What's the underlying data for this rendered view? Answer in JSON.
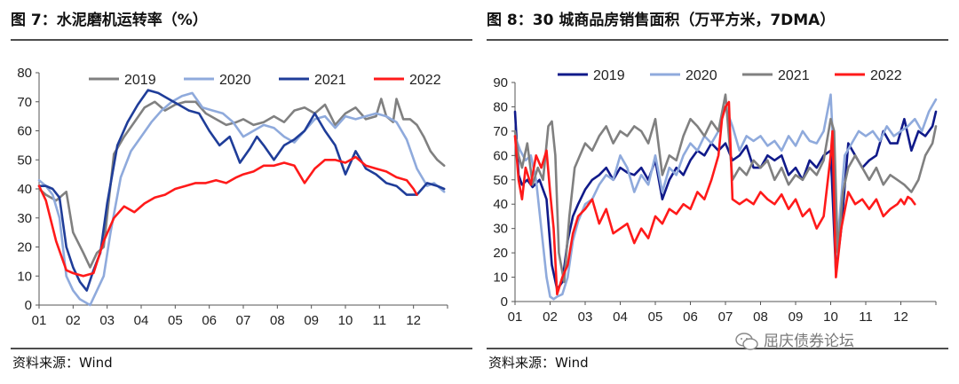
{
  "panels": {
    "left": {
      "title": "图 7：水泥磨机运转率（%）",
      "source": "资料来源：Wind"
    },
    "right": {
      "title": "图 8：30 城商品房销售面积（万平方米，7DMA）",
      "source": "资料来源：Wind"
    }
  },
  "watermark": {
    "text": "屈庆债券论坛"
  },
  "chart_data": [
    {
      "type": "line",
      "title": "图 7：水泥磨机运转率（%）",
      "xlabel": "",
      "ylabel": "",
      "ylim": [
        0,
        80
      ],
      "yticks": [
        0,
        10,
        20,
        30,
        40,
        50,
        60,
        70,
        80
      ],
      "xlim": [
        1,
        13
      ],
      "xticks": [
        "01",
        "02",
        "03",
        "04",
        "05",
        "06",
        "07",
        "08",
        "09",
        "10",
        "11",
        "12"
      ],
      "grid": false,
      "legend": "top",
      "series": [
        {
          "name": "2019",
          "color": "#808080",
          "x": [
            1,
            1.2,
            1.5,
            1.8,
            2,
            2.3,
            2.5,
            2.7,
            2.9,
            3.2,
            3.5,
            3.8,
            4.1,
            4.4,
            4.7,
            5,
            5.3,
            5.6,
            5.9,
            6.2,
            6.5,
            6.8,
            7,
            7.3,
            7.6,
            7.9,
            8.2,
            8.5,
            8.8,
            9.1,
            9.4,
            9.7,
            10,
            10.3,
            10.6,
            10.9,
            11.05,
            11.2,
            11.4,
            11.5,
            11.7,
            11.9,
            12.1,
            12.3,
            12.5,
            12.7,
            12.9
          ],
          "values": [
            40,
            38,
            36,
            39,
            25,
            18,
            13,
            18,
            20,
            52,
            58,
            63,
            68,
            70,
            67,
            69,
            70,
            70,
            66,
            64,
            62,
            63,
            64,
            62,
            63,
            65,
            63,
            67,
            68,
            66,
            69,
            62,
            66,
            68,
            64,
            65,
            71,
            65,
            63,
            71,
            64,
            64,
            62,
            58,
            53,
            50,
            48
          ]
        },
        {
          "name": "2020",
          "color": "#8faadc",
          "x": [
            1,
            1.2,
            1.4,
            1.6,
            1.8,
            2,
            2.2,
            2.5,
            2.7,
            2.9,
            3.1,
            3.4,
            3.7,
            4,
            4.3,
            4.6,
            4.9,
            5.2,
            5.5,
            5.8,
            6.1,
            6.4,
            6.7,
            7,
            7.3,
            7.6,
            7.9,
            8.2,
            8.5,
            8.8,
            9.1,
            9.4,
            9.7,
            10,
            10.3,
            10.6,
            10.9,
            11.2,
            11.5,
            11.8,
            12.1,
            12.4,
            12.6,
            12.9
          ],
          "values": [
            43,
            41,
            38,
            30,
            10,
            5,
            2,
            0,
            5,
            10,
            25,
            44,
            53,
            58,
            63,
            67,
            70,
            72,
            73,
            68,
            67,
            66,
            63,
            58,
            60,
            62,
            61,
            58,
            56,
            60,
            64,
            65,
            61,
            65,
            64,
            65,
            66,
            65,
            63,
            57,
            47,
            41,
            42,
            39
          ]
        },
        {
          "name": "2021",
          "color": "#1f3d99",
          "x": [
            1,
            1.2,
            1.4,
            1.6,
            1.8,
            2,
            2.2,
            2.4,
            2.6,
            2.8,
            3,
            3.3,
            3.6,
            3.9,
            4.2,
            4.5,
            4.8,
            5.1,
            5.4,
            5.7,
            6,
            6.3,
            6.6,
            6.9,
            7.2,
            7.4,
            7.6,
            7.9,
            8.2,
            8.5,
            8.8,
            9.1,
            9.4,
            9.7,
            10,
            10.3,
            10.6,
            10.9,
            11.2,
            11.5,
            11.8,
            12.1,
            12.4,
            12.7,
            12.9
          ],
          "values": [
            41,
            41,
            40,
            37,
            20,
            13,
            8,
            5,
            12,
            18,
            35,
            55,
            63,
            69,
            74,
            73,
            71,
            69,
            67,
            66,
            60,
            55,
            58,
            49,
            54,
            58,
            55,
            50,
            55,
            57,
            60,
            66,
            60,
            55,
            45,
            53,
            47,
            45,
            42,
            41,
            38,
            38,
            42,
            41,
            40
          ]
        },
        {
          "name": "2022",
          "color": "#ff1a1a",
          "x": [
            1,
            1.2,
            1.5,
            1.8,
            2,
            2.3,
            2.6,
            2.9,
            3.2,
            3.5,
            3.8,
            4.1,
            4.4,
            4.7,
            5,
            5.3,
            5.6,
            5.9,
            6.2,
            6.5,
            6.8,
            7,
            7.3,
            7.6,
            7.9,
            8.2,
            8.5,
            8.8,
            9.1,
            9.4,
            9.7,
            10,
            10.3,
            10.6,
            10.9,
            11.2,
            11.5,
            11.8,
            12,
            12.1
          ],
          "values": [
            41,
            36,
            22,
            12,
            11,
            10,
            11,
            22,
            30,
            34,
            32,
            35,
            37,
            38,
            40,
            41,
            42,
            42,
            43,
            42,
            44,
            45,
            46,
            48,
            48,
            49,
            48,
            42,
            47,
            50,
            50,
            49,
            51,
            48,
            47,
            46,
            44,
            43,
            40,
            38
          ]
        }
      ]
    },
    {
      "type": "line",
      "title": "图 8：30 城商品房销售面积（万平方米，7DMA）",
      "xlabel": "",
      "ylabel": "",
      "ylim": [
        0,
        90
      ],
      "yticks": [
        0,
        10,
        20,
        30,
        40,
        50,
        60,
        70,
        80,
        90
      ],
      "xlim": [
        1,
        13
      ],
      "xticks": [
        "01",
        "02",
        "03",
        "04",
        "05",
        "06",
        "07",
        "08",
        "09",
        "10",
        "11",
        "12"
      ],
      "grid": false,
      "legend": "top",
      "series": [
        {
          "name": "2019",
          "color": "#101a8a",
          "x": [
            1,
            1.1,
            1.2,
            1.35,
            1.5,
            1.7,
            1.9,
            2.05,
            2.2,
            2.35,
            2.5,
            2.65,
            2.8,
            3,
            3.2,
            3.4,
            3.6,
            3.8,
            4,
            4.2,
            4.4,
            4.6,
            4.8,
            5,
            5.2,
            5.4,
            5.6,
            5.8,
            6,
            6.2,
            6.4,
            6.6,
            6.8,
            7,
            7.2,
            7.4,
            7.6,
            7.8,
            8,
            8.2,
            8.4,
            8.6,
            8.8,
            9,
            9.2,
            9.4,
            9.6,
            9.8,
            10,
            10.15,
            10.3,
            10.5,
            10.7,
            10.9,
            11.1,
            11.3,
            11.5,
            11.7,
            11.9,
            12.1,
            12.3,
            12.5,
            12.7,
            12.9,
            13
          ],
          "values": [
            78,
            52,
            48,
            50,
            47,
            50,
            42,
            15,
            5,
            8,
            25,
            35,
            40,
            46,
            50,
            52,
            55,
            50,
            55,
            53,
            52,
            55,
            50,
            58,
            42,
            50,
            55,
            52,
            58,
            62,
            60,
            65,
            62,
            65,
            58,
            60,
            64,
            55,
            55,
            60,
            58,
            60,
            52,
            55,
            50,
            58,
            55,
            60,
            62,
            12,
            30,
            65,
            60,
            55,
            58,
            60,
            70,
            65,
            65,
            75,
            62,
            70,
            68,
            72,
            78
          ]
        },
        {
          "name": "2020",
          "color": "#8faadc",
          "x": [
            1,
            1.15,
            1.3,
            1.45,
            1.6,
            1.75,
            1.9,
            2,
            2.1,
            2.2,
            2.35,
            2.5,
            2.65,
            2.8,
            3,
            3.2,
            3.4,
            3.6,
            3.8,
            4,
            4.2,
            4.4,
            4.6,
            4.8,
            5,
            5.2,
            5.4,
            5.6,
            5.8,
            6,
            6.2,
            6.4,
            6.6,
            6.8,
            7,
            7.2,
            7.4,
            7.6,
            7.8,
            8,
            8.2,
            8.4,
            8.6,
            8.8,
            9,
            9.2,
            9.4,
            9.6,
            9.8,
            10,
            10.2,
            10.4,
            10.6,
            10.8,
            11,
            11.2,
            11.4,
            11.6,
            11.8,
            12,
            12.2,
            12.4,
            12.6,
            12.8,
            13
          ],
          "values": [
            68,
            62,
            58,
            60,
            50,
            30,
            10,
            2,
            1,
            2,
            3,
            10,
            25,
            33,
            40,
            42,
            48,
            52,
            50,
            60,
            55,
            45,
            52,
            48,
            60,
            45,
            55,
            52,
            60,
            65,
            62,
            68,
            65,
            70,
            80,
            72,
            62,
            68,
            66,
            68,
            64,
            66,
            62,
            68,
            64,
            70,
            66,
            65,
            70,
            85,
            25,
            60,
            65,
            70,
            68,
            70,
            66,
            72,
            68,
            70,
            72,
            75,
            70,
            78,
            83
          ]
        },
        {
          "name": "2021",
          "color": "#808080",
          "x": [
            1,
            1.1,
            1.2,
            1.35,
            1.5,
            1.65,
            1.8,
            1.95,
            2.05,
            2.15,
            2.25,
            2.4,
            2.55,
            2.7,
            2.85,
            3,
            3.2,
            3.4,
            3.6,
            3.8,
            4,
            4.2,
            4.4,
            4.6,
            4.8,
            5,
            5.2,
            5.4,
            5.6,
            5.8,
            6,
            6.2,
            6.4,
            6.6,
            6.8,
            7,
            7.2,
            7.4,
            7.6,
            7.8,
            8,
            8.2,
            8.4,
            8.6,
            8.8,
            9,
            9.2,
            9.4,
            9.6,
            9.8,
            10,
            10.1,
            10.2,
            10.35,
            10.5,
            10.7,
            10.9,
            11.1,
            11.3,
            11.5,
            11.7,
            11.9,
            12.1,
            12.3,
            12.5,
            12.7,
            12.9,
            13
          ],
          "values": [
            70,
            60,
            55,
            65,
            48,
            55,
            50,
            72,
            74,
            60,
            20,
            8,
            35,
            55,
            60,
            65,
            62,
            68,
            72,
            65,
            70,
            68,
            72,
            70,
            65,
            75,
            52,
            60,
            58,
            68,
            75,
            72,
            68,
            74,
            70,
            85,
            50,
            55,
            52,
            58,
            55,
            58,
            50,
            55,
            48,
            52,
            50,
            55,
            52,
            58,
            75,
            70,
            20,
            45,
            55,
            60,
            55,
            50,
            55,
            48,
            52,
            50,
            48,
            45,
            50,
            60,
            65,
            72
          ]
        },
        {
          "name": "2022",
          "color": "#ff1a1a",
          "x": [
            1,
            1.1,
            1.2,
            1.3,
            1.45,
            1.6,
            1.75,
            1.9,
            2,
            2.1,
            2.2,
            2.35,
            2.5,
            2.65,
            2.8,
            3,
            3.2,
            3.4,
            3.6,
            3.8,
            4,
            4.2,
            4.4,
            4.6,
            4.8,
            5,
            5.2,
            5.4,
            5.6,
            5.8,
            6,
            6.2,
            6.4,
            6.6,
            6.8,
            6.9,
            7,
            7.1,
            7.2,
            7.4,
            7.6,
            7.8,
            8,
            8.2,
            8.4,
            8.6,
            8.8,
            9,
            9.2,
            9.4,
            9.6,
            9.8,
            10,
            10.05,
            10.15,
            10.3,
            10.5,
            10.7,
            10.9,
            11.1,
            11.3,
            11.5,
            11.7,
            11.9,
            12,
            12.1,
            12.2,
            12.3,
            12.4
          ],
          "values": [
            68,
            50,
            42,
            55,
            48,
            60,
            55,
            62,
            45,
            30,
            3,
            10,
            15,
            28,
            35,
            38,
            42,
            32,
            38,
            28,
            30,
            32,
            24,
            30,
            26,
            35,
            32,
            38,
            36,
            40,
            38,
            45,
            42,
            50,
            60,
            75,
            80,
            82,
            42,
            40,
            42,
            40,
            45,
            42,
            40,
            44,
            38,
            42,
            35,
            38,
            30,
            35,
            60,
            70,
            10,
            30,
            45,
            40,
            42,
            38,
            42,
            35,
            38,
            40,
            42,
            40,
            43,
            42,
            40
          ]
        }
      ]
    }
  ]
}
